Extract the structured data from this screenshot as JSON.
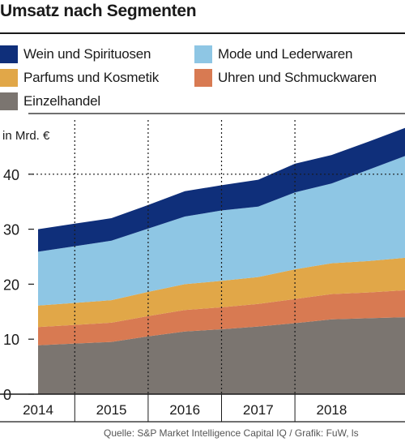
{
  "title": "Umsatz nach Segmenten",
  "unit_label": "in Mrd. €",
  "source": "Quelle: S&P Market Intelligence Capital IQ / Grafik: FuW, ls",
  "colors": {
    "wein": "#0f2f7a",
    "mode": "#8ec6e4",
    "parfums": "#e1a748",
    "uhren": "#d87a52",
    "einzelhandel": "#7b7570"
  },
  "chart_data": {
    "type": "area",
    "stacked": true,
    "title": "Umsatz nach Segmenten",
    "ylabel": "in Mrd. €",
    "ylim": [
      0,
      48
    ],
    "yticks": [
      0,
      10,
      20,
      30,
      40
    ],
    "x": [
      2014,
      2014.5,
      2015,
      2015.5,
      2016,
      2016.5,
      2017,
      2017.5,
      2018,
      2018.5,
      2019
    ],
    "categories": [
      "2014",
      "2015",
      "2016",
      "2017",
      "2018"
    ],
    "legend_position": "top",
    "grid": "dotted vertical lines at year boundaries, horizontal rule at 40",
    "series": [
      {
        "name": "Einzelhandel",
        "color_key": "einzelhandel",
        "values": [
          8.9,
          9.2,
          9.5,
          10.5,
          11.4,
          11.8,
          12.3,
          12.9,
          13.6,
          13.8,
          14.0
        ]
      },
      {
        "name": "Uhren und Schmuckwaren",
        "color_key": "uhren",
        "values": [
          3.3,
          3.4,
          3.5,
          3.7,
          3.9,
          4.0,
          4.1,
          4.4,
          4.6,
          4.7,
          4.9
        ]
      },
      {
        "name": "Parfums und Kosmetik",
        "color_key": "parfums",
        "values": [
          3.9,
          4.0,
          4.1,
          4.4,
          4.7,
          4.8,
          4.9,
          5.4,
          5.6,
          5.7,
          5.9
        ]
      },
      {
        "name": "Mode und Lederwaren",
        "color_key": "mode",
        "values": [
          9.8,
          10.3,
          10.8,
          11.5,
          12.3,
          12.8,
          12.8,
          14.0,
          14.5,
          16.6,
          18.5
        ]
      },
      {
        "name": "Wein und Spirituosen",
        "color_key": "wein",
        "values": [
          4.1,
          4.1,
          4.1,
          4.3,
          4.6,
          4.6,
          4.9,
          5.2,
          5.2,
          5.1,
          5.1
        ]
      }
    ]
  },
  "legend": [
    {
      "label": "Wein und Spirituosen",
      "color_key": "wein"
    },
    {
      "label": "Mode und Lederwaren",
      "color_key": "mode"
    },
    {
      "label": "Parfums und Kosmetik",
      "color_key": "parfums"
    },
    {
      "label": "Uhren und Schmuckwaren",
      "color_key": "uhren"
    },
    {
      "label": "Einzelhandel",
      "color_key": "einzelhandel"
    }
  ]
}
